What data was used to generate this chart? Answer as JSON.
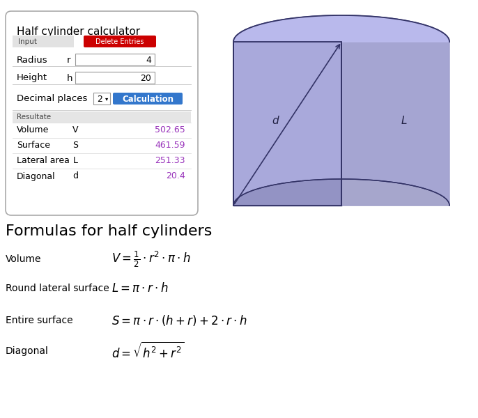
{
  "title": "Half cylinder calculator",
  "input_label": "Input",
  "delete_btn": "Delete Entries",
  "radius_label": "Radius",
  "radius_sym": "r",
  "radius_val": "4",
  "height_label": "Height",
  "height_sym": "h",
  "height_val": "20",
  "decimal_label": "Decimal places",
  "calc_btn": "Calculation",
  "resultate_label": "Resultate",
  "rows": [
    {
      "label": "Volume",
      "sym": "V",
      "val": "502.65"
    },
    {
      "label": "Surface",
      "sym": "S",
      "val": "461.59"
    },
    {
      "label": "Lateral area",
      "sym": "L",
      "val": "251.33"
    },
    {
      "label": "Diagonal",
      "sym": "d",
      "val": "20.4"
    }
  ],
  "formula_title": "Formulas for half cylinders",
  "formulas": [
    {
      "label": "Volume",
      "expr": "$V = \\frac{1}{2} \\cdot r^2 \\cdot \\pi \\cdot h$"
    },
    {
      "label": "Round lateral surface",
      "expr": "$L = \\pi \\cdot r \\cdot h$"
    },
    {
      "label": "Entire surface",
      "expr": "$S = \\pi \\cdot r \\cdot (h+r) + 2 \\cdot r \\cdot h$"
    },
    {
      "label": "Diagonal",
      "expr": "$d = \\sqrt{h^2 + r^2}$"
    }
  ],
  "red_btn_color": "#CC0000",
  "blue_btn_color": "#3377CC",
  "result_color": "#9933BB",
  "bg_color": "#FFFFFF",
  "cyl_face": "#9999CC",
  "cyl_flat": "#AAAADD",
  "cyl_top": "#BBBBEE",
  "cyl_bot": "#8888BB",
  "cyl_edge": "#333366"
}
